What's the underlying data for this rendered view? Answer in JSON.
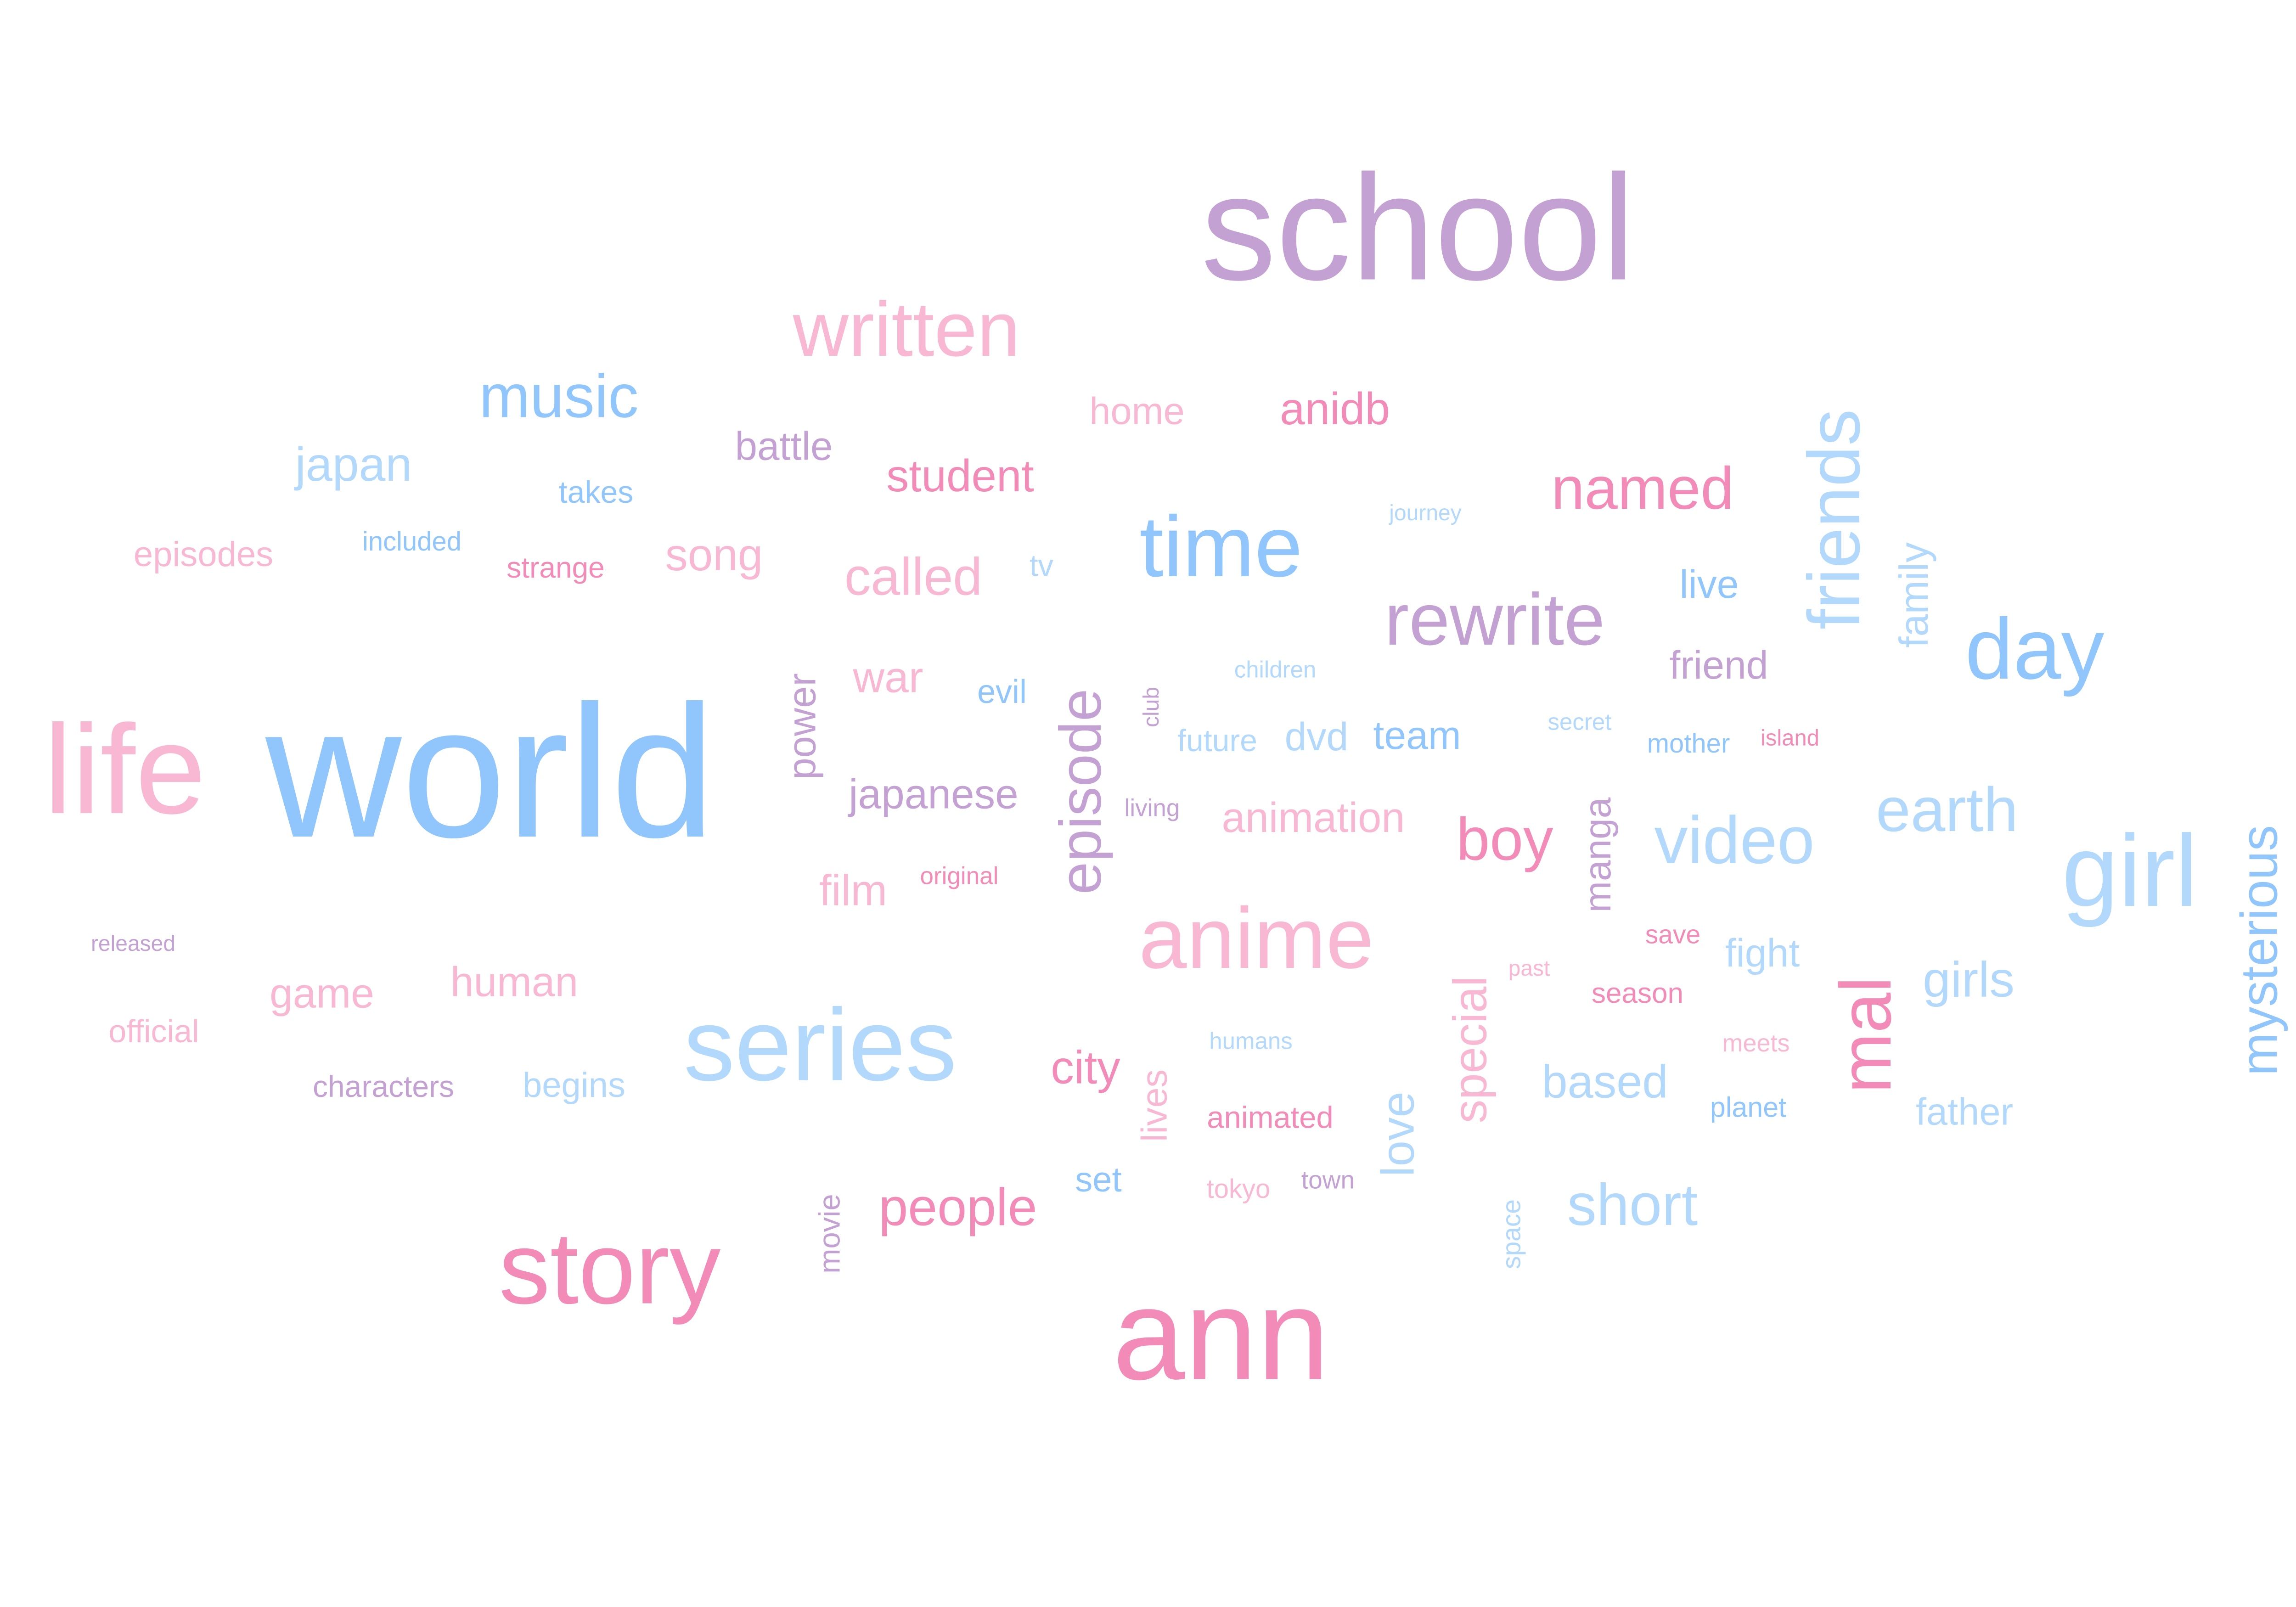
{
  "palette": {
    "blue": "#90c6fb",
    "lightblue": "#b2d8fb",
    "purple": "#c3a2d3",
    "pink": "#f49ec4",
    "lightpink": "#f8b8d4",
    "hotpink": "#f38bb8"
  },
  "words": [
    {
      "key": "school",
      "text": "school",
      "color": "purple",
      "vertical": false
    },
    {
      "key": "world",
      "text": "world",
      "color": "blue",
      "vertical": false
    },
    {
      "key": "life",
      "text": "life",
      "color": "lightpink",
      "vertical": false
    },
    {
      "key": "ann",
      "text": "ann",
      "color": "hotpink",
      "vertical": false
    },
    {
      "key": "series",
      "text": "series",
      "color": "lightblue",
      "vertical": false
    },
    {
      "key": "story",
      "text": "story",
      "color": "hotpink",
      "vertical": false
    },
    {
      "key": "anime",
      "text": "anime",
      "color": "lightpink",
      "vertical": false
    },
    {
      "key": "girl",
      "text": "girl",
      "color": "lightblue",
      "vertical": false
    },
    {
      "key": "time",
      "text": "time",
      "color": "blue",
      "vertical": false
    },
    {
      "key": "written",
      "text": "written",
      "color": "lightpink",
      "vertical": false
    },
    {
      "key": "day",
      "text": "day",
      "color": "blue",
      "vertical": false
    },
    {
      "key": "rewrite",
      "text": "rewrite",
      "color": "purple",
      "vertical": false
    },
    {
      "key": "friends",
      "text": "friends",
      "color": "lightblue",
      "vertical": true
    },
    {
      "key": "mal",
      "text": "mal",
      "color": "hotpink",
      "vertical": true
    },
    {
      "key": "episode",
      "text": "episode",
      "color": "purple",
      "vertical": true
    },
    {
      "key": "video",
      "text": "video",
      "color": "lightblue",
      "vertical": false
    },
    {
      "key": "music",
      "text": "music",
      "color": "blue",
      "vertical": false
    },
    {
      "key": "earth",
      "text": "earth",
      "color": "lightblue",
      "vertical": false
    },
    {
      "key": "named",
      "text": "named",
      "color": "hotpink",
      "vertical": false
    },
    {
      "key": "mysterious",
      "text": "mysterious",
      "color": "blue",
      "vertical": true
    },
    {
      "key": "boy",
      "text": "boy",
      "color": "hotpink",
      "vertical": false
    },
    {
      "key": "short",
      "text": "short",
      "color": "lightblue",
      "vertical": false
    },
    {
      "key": "people",
      "text": "people",
      "color": "hotpink",
      "vertical": false
    },
    {
      "key": "called",
      "text": "called",
      "color": "lightpink",
      "vertical": false
    },
    {
      "key": "girls",
      "text": "girls",
      "color": "lightblue",
      "vertical": false
    },
    {
      "key": "special",
      "text": "special",
      "color": "lightpink",
      "vertical": true
    },
    {
      "key": "based",
      "text": "based",
      "color": "lightblue",
      "vertical": false
    },
    {
      "key": "japan",
      "text": "japan",
      "color": "lightblue",
      "vertical": false
    },
    {
      "key": "student",
      "text": "student",
      "color": "hotpink",
      "vertical": false
    },
    {
      "key": "anidb",
      "text": "anidb",
      "color": "hotpink",
      "vertical": false
    },
    {
      "key": "song",
      "text": "song",
      "color": "lightpink",
      "vertical": false
    },
    {
      "key": "animation",
      "text": "animation",
      "color": "lightpink",
      "vertical": false
    },
    {
      "key": "japanese",
      "text": "japanese",
      "color": "purple",
      "vertical": false
    },
    {
      "key": "human",
      "text": "human",
      "color": "lightpink",
      "vertical": false
    },
    {
      "key": "game",
      "text": "game",
      "color": "lightpink",
      "vertical": false
    },
    {
      "key": "city",
      "text": "city",
      "color": "hotpink",
      "vertical": false
    },
    {
      "key": "love",
      "text": "love",
      "color": "lightblue",
      "vertical": true
    },
    {
      "key": "battle",
      "text": "battle",
      "color": "purple",
      "vertical": false
    },
    {
      "key": "family",
      "text": "family",
      "color": "lightblue",
      "vertical": true
    },
    {
      "key": "power",
      "text": "power",
      "color": "purple",
      "vertical": true
    },
    {
      "key": "film",
      "text": "film",
      "color": "lightpink",
      "vertical": false
    },
    {
      "key": "war",
      "text": "war",
      "color": "lightpink",
      "vertical": false
    },
    {
      "key": "home",
      "text": "home",
      "color": "lightpink",
      "vertical": false
    },
    {
      "key": "team",
      "text": "team",
      "color": "blue",
      "vertical": false
    },
    {
      "key": "friend",
      "text": "friend",
      "color": "purple",
      "vertical": false
    },
    {
      "key": "dvd",
      "text": "dvd",
      "color": "lightblue",
      "vertical": false
    },
    {
      "key": "manga",
      "text": "manga",
      "color": "purple",
      "vertical": true
    },
    {
      "key": "live",
      "text": "live",
      "color": "blue",
      "vertical": false
    },
    {
      "key": "fight",
      "text": "fight",
      "color": "lightblue",
      "vertical": false
    },
    {
      "key": "father",
      "text": "father",
      "color": "lightblue",
      "vertical": false
    },
    {
      "key": "episodes",
      "text": "episodes",
      "color": "lightpink",
      "vertical": false
    },
    {
      "key": "lives",
      "text": "lives",
      "color": "lightpink",
      "vertical": true
    },
    {
      "key": "begins",
      "text": "begins",
      "color": "lightblue",
      "vertical": false
    },
    {
      "key": "characters",
      "text": "characters",
      "color": "purple",
      "vertical": false
    },
    {
      "key": "official",
      "text": "official",
      "color": "lightpink",
      "vertical": false
    },
    {
      "key": "evil",
      "text": "evil",
      "color": "blue",
      "vertical": false
    },
    {
      "key": "set",
      "text": "set",
      "color": "blue",
      "vertical": false
    },
    {
      "key": "animated",
      "text": "animated",
      "color": "hotpink",
      "vertical": false
    },
    {
      "key": "future",
      "text": "future",
      "color": "lightblue",
      "vertical": false
    },
    {
      "key": "takes",
      "text": "takes",
      "color": "blue",
      "vertical": false
    },
    {
      "key": "strange",
      "text": "strange",
      "color": "hotpink",
      "vertical": false
    },
    {
      "key": "movie",
      "text": "movie",
      "color": "purple",
      "vertical": true
    },
    {
      "key": "tv",
      "text": "tv",
      "color": "lightblue",
      "vertical": false
    },
    {
      "key": "season",
      "text": "season",
      "color": "hotpink",
      "vertical": false
    },
    {
      "key": "planet",
      "text": "planet",
      "color": "blue",
      "vertical": false
    },
    {
      "key": "mother",
      "text": "mother",
      "color": "blue",
      "vertical": false
    },
    {
      "key": "included",
      "text": "included",
      "color": "blue",
      "vertical": false
    },
    {
      "key": "save",
      "text": "save",
      "color": "hotpink",
      "vertical": false
    },
    {
      "key": "tokyo",
      "text": "tokyo",
      "color": "lightpink",
      "vertical": false
    },
    {
      "key": "town",
      "text": "town",
      "color": "purple",
      "vertical": false
    },
    {
      "key": "space",
      "text": "space",
      "color": "lightblue",
      "vertical": true
    },
    {
      "key": "meets",
      "text": "meets",
      "color": "lightpink",
      "vertical": false
    },
    {
      "key": "living",
      "text": "living",
      "color": "purple",
      "vertical": false
    },
    {
      "key": "original",
      "text": "original",
      "color": "hotpink",
      "vertical": false
    },
    {
      "key": "children",
      "text": "children",
      "color": "lightblue",
      "vertical": false
    },
    {
      "key": "humans",
      "text": "humans",
      "color": "lightblue",
      "vertical": false
    },
    {
      "key": "secret",
      "text": "secret",
      "color": "lightblue",
      "vertical": false
    },
    {
      "key": "journey",
      "text": "journey",
      "color": "lightblue",
      "vertical": false
    },
    {
      "key": "island",
      "text": "island",
      "color": "hotpink",
      "vertical": false
    },
    {
      "key": "past",
      "text": "past",
      "color": "lightpink",
      "vertical": false
    },
    {
      "key": "released",
      "text": "released",
      "color": "purple",
      "vertical": false
    },
    {
      "key": "club",
      "text": "club",
      "color": "purple",
      "vertical": true
    }
  ]
}
